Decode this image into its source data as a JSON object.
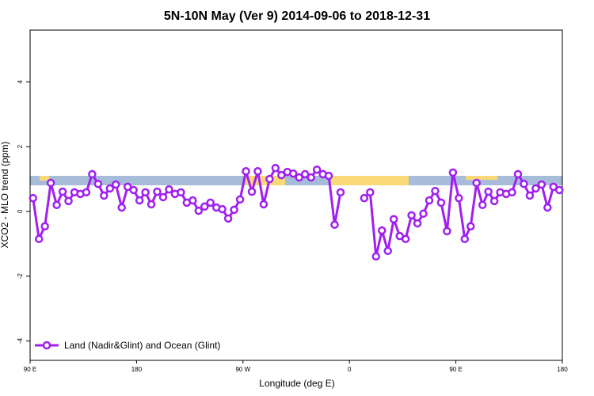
{
  "chart_data": {
    "type": "line",
    "title": "5N-10N May (Ver 9)   2014-09-06 to 2018-12-31",
    "x_label": "Longitude (deg E)",
    "y_label": "XCO2 - MLO trend (ppm)",
    "xlim": [
      90,
      540
    ],
    "ylim": [
      -4.6,
      5.6
    ],
    "xticks": [
      {
        "value": 90,
        "label": "90 E"
      },
      180,
      {
        "value": 270,
        "label": "90 W"
      },
      {
        "value": 360,
        "label": "0"
      },
      {
        "value": 450,
        "label": "90 E"
      },
      {
        "value": 540,
        "label": "180"
      }
    ],
    "yticks": [
      -4,
      -2,
      0,
      2,
      4
    ],
    "legend": "bottom-left",
    "x": [
      92.5,
      97.5,
      102.5,
      107.5,
      112.5,
      117.5,
      122.5,
      127.5,
      132.5,
      137.5,
      142.5,
      147.5,
      152.5,
      157.5,
      162.5,
      167.5,
      172.5,
      177.5,
      182.5,
      187.5,
      192.5,
      197.5,
      202.5,
      207.5,
      212.5,
      217.5,
      222.5,
      227.5,
      232.5,
      237.5,
      242.5,
      247.5,
      252.5,
      257.5,
      262.5,
      267.5,
      272.5,
      277.5,
      282.5,
      287.5,
      292.5,
      297.5,
      302.5,
      307.5,
      312.5,
      317.5,
      322.5,
      327.5,
      332.5,
      337.5,
      342.5,
      347.5,
      352.5,
      357.5,
      362.5,
      367.5,
      372.5,
      377.5,
      382.5,
      387.5,
      392.5,
      397.5,
      402.5,
      407.5,
      412.5,
      417.5,
      422.5,
      427.5,
      432.5,
      437.5,
      442.5,
      447.5,
      452.5,
      457.5,
      462.5,
      467.5,
      472.5,
      477.5,
      482.5,
      487.5,
      492.5,
      497.5,
      502.5,
      507.5,
      512.5,
      517.5,
      522.5,
      527.5,
      532.5,
      537.5
    ],
    "series": [
      {
        "name": "Land (Nadir&Glint) and Ocean (Glint)",
        "color": "#a020f0",
        "values": [
          0.41,
          -0.85,
          -0.46,
          0.88,
          0.2,
          0.61,
          0.32,
          0.59,
          0.54,
          0.59,
          1.15,
          0.85,
          0.49,
          0.71,
          0.83,
          0.12,
          0.76,
          0.66,
          0.34,
          0.59,
          0.22,
          0.61,
          0.44,
          0.68,
          0.54,
          0.59,
          0.27,
          0.34,
          0.02,
          0.15,
          0.27,
          0.12,
          0.07,
          -0.22,
          0.05,
          0.37,
          1.24,
          0.61,
          1.24,
          0.22,
          1.0,
          1.34,
          1.12,
          1.22,
          1.17,
          1.05,
          1.15,
          1.05,
          1.29,
          1.15,
          1.1,
          -0.41,
          0.59,
          null,
          null,
          null,
          0.41,
          0.59,
          -1.39,
          -0.59,
          -1.22,
          -0.24,
          -0.76,
          -0.85,
          -0.12,
          -0.37,
          -0.07,
          0.34,
          0.63,
          0.27,
          -0.61,
          1.2,
          0.41,
          -0.85,
          -0.46,
          0.88,
          0.2,
          0.61,
          0.32,
          0.59,
          0.54,
          0.59,
          1.15,
          0.85,
          0.49,
          0.71,
          0.83,
          0.12,
          0.76,
          0.66
        ]
      }
    ]
  }
}
